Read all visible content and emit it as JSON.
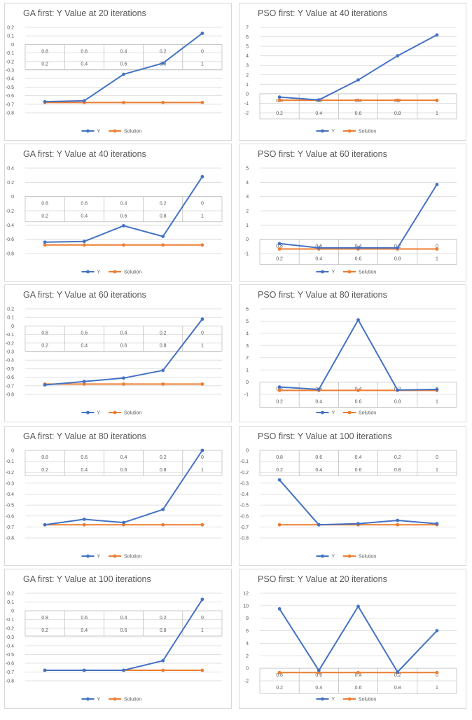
{
  "chart_data": [
    {
      "type": "line",
      "title": "GA first: Y Value at 20 iterations",
      "x": [
        0.2,
        0.4,
        0.6,
        0.8,
        1
      ],
      "x_tick_labels": [
        "0.2",
        "0.4",
        "0.6",
        "0.8",
        "1"
      ],
      "x_reversed_tick_labels": [
        "0.8",
        "0.6",
        "0.4",
        "0.2",
        "0"
      ],
      "ylim": [
        -0.8,
        0.2
      ],
      "y_ticks": [
        -0.8,
        -0.7,
        -0.6,
        -0.5,
        -0.4,
        -0.3,
        -0.2,
        -0.1,
        0,
        0.1,
        0.2
      ],
      "grid": true,
      "legend_position": "bottom",
      "series": [
        {
          "name": "Y",
          "color": "#4472c4",
          "values": [
            -0.67,
            -0.66,
            -0.35,
            -0.22,
            0.13
          ]
        },
        {
          "name": "Solution",
          "color": "#ed7d31",
          "values": [
            -0.68,
            -0.68,
            -0.68,
            -0.68,
            -0.68
          ]
        }
      ]
    },
    {
      "type": "line",
      "title": "PSO first: Y Value at 40 iterations",
      "x": [
        0.2,
        0.4,
        0.6,
        0.8,
        1
      ],
      "x_tick_labels": [
        "0.2",
        "0.4",
        "0.6",
        "0.8",
        "1"
      ],
      "x_reversed_tick_labels": [
        "0.8",
        "0.6",
        "0.4",
        "0.2",
        "0"
      ],
      "ylim": [
        -2,
        7
      ],
      "y_ticks": [
        -2,
        -1,
        0,
        1,
        2,
        3,
        4,
        5,
        6,
        7
      ],
      "grid": true,
      "legend_position": "bottom",
      "series": [
        {
          "name": "Y",
          "color": "#4472c4",
          "values": [
            -0.35,
            -0.65,
            1.45,
            4,
            6.2
          ]
        },
        {
          "name": "Solution",
          "color": "#ed7d31",
          "values": [
            -0.68,
            -0.68,
            -0.68,
            -0.68,
            -0.68
          ]
        }
      ]
    },
    {
      "type": "line",
      "title": "GA first: Y Value at 40 iterations",
      "x": [
        0.2,
        0.4,
        0.6,
        0.8,
        1
      ],
      "x_tick_labels": [
        "0.2",
        "0.4",
        "0.6",
        "0.8",
        "1"
      ],
      "x_reversed_tick_labels": [
        "0.8",
        "0.6",
        "0.4",
        "0.2",
        "0"
      ],
      "ylim": [
        -0.8,
        0.4
      ],
      "y_ticks": [
        -0.8,
        -0.6,
        -0.4,
        -0.2,
        0,
        0.2,
        0.4
      ],
      "grid": true,
      "legend_position": "bottom",
      "series": [
        {
          "name": "Y",
          "color": "#4472c4",
          "values": [
            -0.64,
            -0.63,
            -0.41,
            -0.56,
            0.28
          ]
        },
        {
          "name": "Solution",
          "color": "#ed7d31",
          "values": [
            -0.68,
            -0.68,
            -0.68,
            -0.68,
            -0.68
          ]
        }
      ]
    },
    {
      "type": "line",
      "title": "PSO first: Y Value at 60 iterations",
      "x": [
        0.2,
        0.4,
        0.6,
        0.8,
        1
      ],
      "x_tick_labels": [
        "0.2",
        "0.4",
        "0.6",
        "0.8",
        "1"
      ],
      "x_reversed_tick_labels": [
        "0.8",
        "0.6",
        "0.4",
        "0.2",
        "0"
      ],
      "ylim": [
        -1,
        5
      ],
      "y_ticks": [
        -1,
        0,
        1,
        2,
        3,
        4,
        5
      ],
      "grid": true,
      "legend_position": "bottom",
      "series": [
        {
          "name": "Y",
          "color": "#4472c4",
          "values": [
            -0.3,
            -0.6,
            -0.6,
            -0.6,
            3.85
          ]
        },
        {
          "name": "Solution",
          "color": "#ed7d31",
          "values": [
            -0.68,
            -0.68,
            -0.68,
            -0.68,
            -0.68
          ]
        }
      ]
    },
    {
      "type": "line",
      "title": "GA first: Y Value at 60 iterations",
      "x": [
        0.2,
        0.4,
        0.6,
        0.8,
        1
      ],
      "x_tick_labels": [
        "0.2",
        "0.4",
        "0.6",
        "0.8",
        "1"
      ],
      "x_reversed_tick_labels": [
        "0.8",
        "0.6",
        "0.4",
        "0.2",
        "0"
      ],
      "ylim": [
        -0.8,
        0.2
      ],
      "y_ticks": [
        -0.8,
        -0.7,
        -0.6,
        -0.5,
        -0.4,
        -0.3,
        -0.2,
        -0.1,
        0,
        0.1,
        0.2
      ],
      "grid": true,
      "legend_position": "bottom",
      "series": [
        {
          "name": "Y",
          "color": "#4472c4",
          "values": [
            -0.69,
            -0.65,
            -0.61,
            -0.52,
            0.08
          ]
        },
        {
          "name": "Solution",
          "color": "#ed7d31",
          "values": [
            -0.68,
            -0.68,
            -0.68,
            -0.68,
            -0.68
          ]
        }
      ]
    },
    {
      "type": "line",
      "title": "PSO first: Y Value at 80 iterations",
      "x": [
        0.2,
        0.4,
        0.6,
        0.8,
        1
      ],
      "x_tick_labels": [
        "0.2",
        "0.4",
        "0.6",
        "0.8",
        "1"
      ],
      "x_reversed_tick_labels": [
        "0.8",
        "0.6",
        "0.4",
        "0.2",
        "0"
      ],
      "ylim": [
        -1,
        6
      ],
      "y_ticks": [
        -1,
        0,
        1,
        2,
        3,
        4,
        5,
        6
      ],
      "grid": true,
      "legend_position": "bottom",
      "series": [
        {
          "name": "Y",
          "color": "#4472c4",
          "values": [
            -0.4,
            -0.6,
            5.1,
            -0.65,
            -0.6
          ]
        },
        {
          "name": "Solution",
          "color": "#ed7d31",
          "values": [
            -0.68,
            -0.68,
            -0.68,
            -0.68,
            -0.68
          ]
        }
      ]
    },
    {
      "type": "line",
      "title": "GA first: Y Value at 80 iterations",
      "x": [
        0.2,
        0.4,
        0.6,
        0.8,
        1
      ],
      "x_tick_labels": [
        "0.2",
        "0.4",
        "0.6",
        "0.8",
        "1"
      ],
      "x_reversed_tick_labels": [
        "0.8",
        "0.6",
        "0.4",
        "0.2",
        "0"
      ],
      "ylim": [
        -0.8,
        0
      ],
      "y_ticks": [
        -0.8,
        -0.7,
        -0.6,
        -0.5,
        -0.4,
        -0.3,
        -0.2,
        -0.1,
        0
      ],
      "grid": true,
      "legend_position": "bottom",
      "series": [
        {
          "name": "Y",
          "color": "#4472c4",
          "values": [
            -0.68,
            -0.63,
            -0.66,
            -0.54,
            0
          ]
        },
        {
          "name": "Solution",
          "color": "#ed7d31",
          "values": [
            -0.68,
            -0.68,
            -0.68,
            -0.68,
            -0.68
          ]
        }
      ]
    },
    {
      "type": "line",
      "title": "PSO first: Y Value at 100 iterations",
      "x": [
        0.2,
        0.4,
        0.6,
        0.8,
        1
      ],
      "x_tick_labels": [
        "0.2",
        "0.4",
        "0.6",
        "0.8",
        "1"
      ],
      "x_reversed_tick_labels": [
        "0.8",
        "0.6",
        "0.4",
        "0.2",
        "0"
      ],
      "ylim": [
        -0.8,
        0
      ],
      "y_ticks": [
        -0.8,
        -0.7,
        -0.6,
        -0.5,
        -0.4,
        -0.3,
        -0.2,
        -0.1,
        0
      ],
      "grid": true,
      "legend_position": "bottom",
      "series": [
        {
          "name": "Y",
          "color": "#4472c4",
          "values": [
            -0.27,
            -0.68,
            -0.67,
            -0.64,
            -0.67
          ]
        },
        {
          "name": "Solution",
          "color": "#ed7d31",
          "values": [
            -0.68,
            -0.68,
            -0.68,
            -0.68,
            -0.68
          ]
        }
      ]
    },
    {
      "type": "line",
      "title": "GA first: Y Value at 100 iterations",
      "x": [
        0.2,
        0.4,
        0.6,
        0.8,
        1
      ],
      "x_tick_labels": [
        "0.2",
        "0.4",
        "0.6",
        "0.8",
        "1"
      ],
      "x_reversed_tick_labels": [
        "0.8",
        "0.6",
        "0.4",
        "0.2",
        "0"
      ],
      "ylim": [
        -0.8,
        0.2
      ],
      "y_ticks": [
        -0.8,
        -0.7,
        -0.6,
        -0.5,
        -0.4,
        -0.3,
        -0.2,
        -0.1,
        0,
        0.1,
        0.2
      ],
      "grid": true,
      "legend_position": "bottom",
      "series": [
        {
          "name": "Y",
          "color": "#4472c4",
          "values": [
            -0.68,
            -0.68,
            -0.68,
            -0.57,
            0.13
          ]
        },
        {
          "name": "Solution",
          "color": "#ed7d31",
          "values": [
            -0.68,
            -0.68,
            -0.68,
            -0.68,
            -0.68
          ]
        }
      ]
    },
    {
      "type": "line",
      "title": "PSO first: Y Value at 20 iterations",
      "x": [
        0.2,
        0.4,
        0.6,
        0.8,
        1
      ],
      "x_tick_labels": [
        "0.2",
        "0.4",
        "0.6",
        "0.8",
        "1"
      ],
      "x_reversed_tick_labels": [
        "0.8",
        "0.6",
        "0.4",
        "0.2",
        "0"
      ],
      "ylim": [
        -2,
        12
      ],
      "y_ticks": [
        -2,
        0,
        2,
        4,
        6,
        8,
        10,
        12
      ],
      "grid": true,
      "legend_position": "bottom",
      "series": [
        {
          "name": "Y",
          "color": "#4472c4",
          "values": [
            9.5,
            -0.35,
            9.9,
            -0.6,
            6
          ]
        },
        {
          "name": "Solution",
          "color": "#ed7d31",
          "values": [
            -0.68,
            -0.68,
            -0.68,
            -0.68,
            -0.68
          ]
        }
      ]
    }
  ]
}
